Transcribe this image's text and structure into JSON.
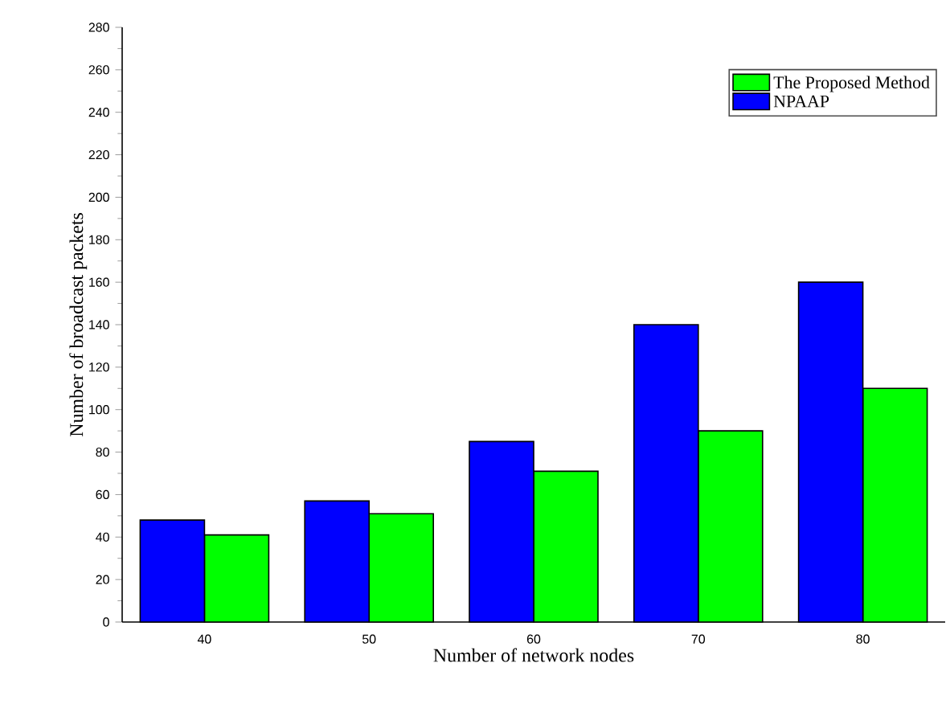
{
  "chart_data": {
    "type": "bar",
    "xlabel": "Number of network nodes",
    "ylabel": "Number of broadcast packets",
    "categories": [
      "40",
      "50",
      "60",
      "70",
      "80"
    ],
    "series": [
      {
        "name": "The Proposed Method",
        "color": "#00ff00",
        "values": [
          41,
          51,
          71,
          90,
          110
        ]
      },
      {
        "name": "NPAAP",
        "color": "#0000ff",
        "values": [
          48,
          57,
          85,
          140,
          160
        ]
      }
    ],
    "ylim": [
      0,
      280
    ],
    "yticks": [
      0,
      20,
      40,
      60,
      80,
      100,
      120,
      140,
      160,
      180,
      200,
      220,
      240,
      260,
      280
    ],
    "legend": "top right",
    "grid": false
  }
}
